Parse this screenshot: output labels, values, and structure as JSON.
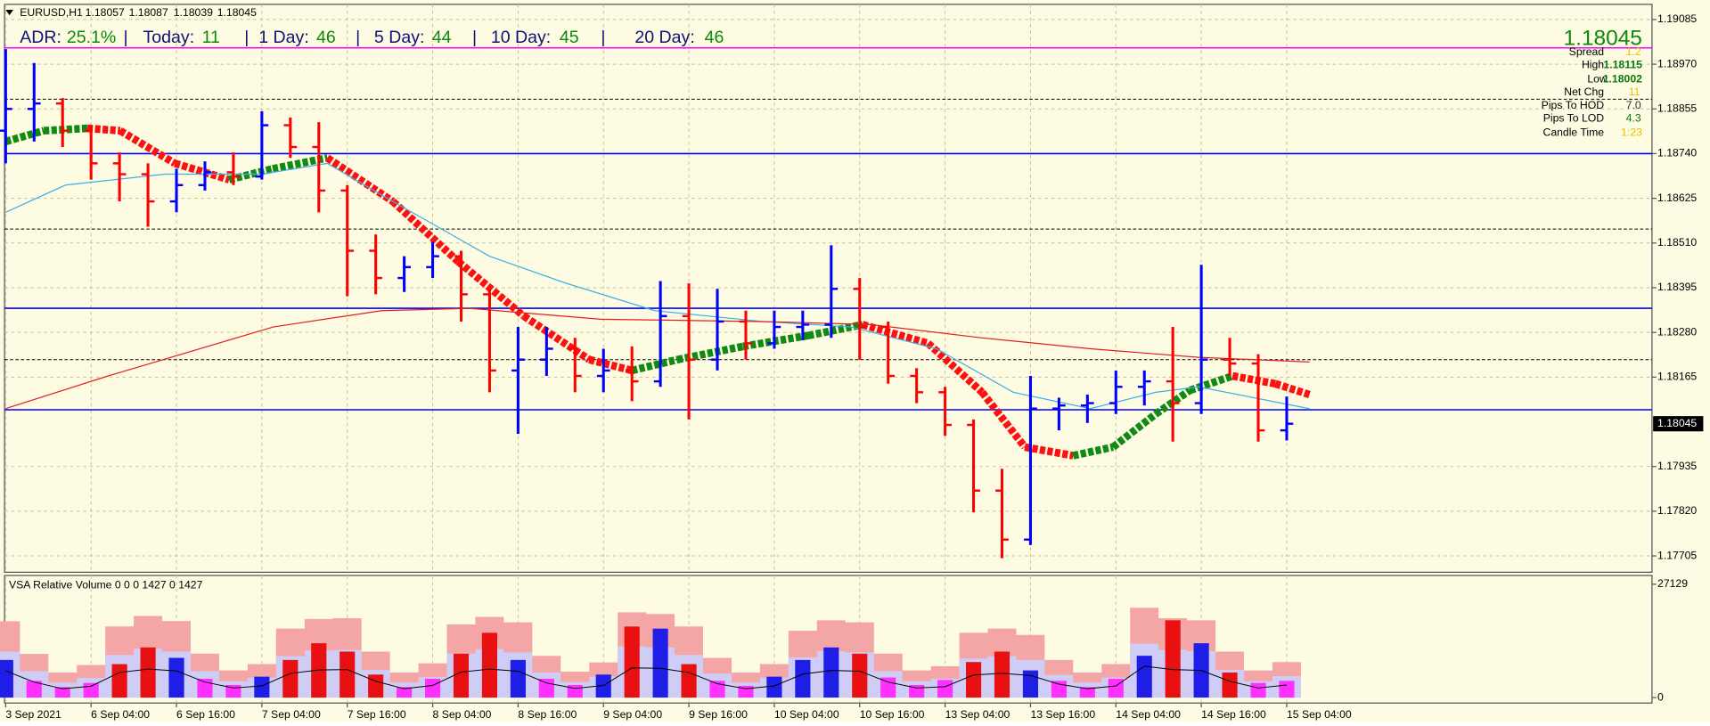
{
  "header": {
    "symbol": "EURUSD,H1",
    "quote": [
      1.18057,
      1.18087,
      1.18039,
      1.18045
    ]
  },
  "adr": {
    "label": "ADR:",
    "value": "25.1%",
    "items": [
      {
        "label": "Today:",
        "value": "11"
      },
      {
        "label": "1 Day:",
        "value": "46"
      },
      {
        "label": "5 Day:",
        "value": "44"
      },
      {
        "label": "10 Day:",
        "value": "45"
      },
      {
        "label": "20 Day:",
        "value": "46"
      }
    ]
  },
  "info_panel": {
    "price": "1.18045",
    "rows": [
      {
        "label": "Spread",
        "value": "1.2"
      },
      {
        "label": "High",
        "value": "1.18115"
      },
      {
        "label": "Low",
        "value": "1.18002"
      },
      {
        "label": "Net Chg",
        "value": "11"
      },
      {
        "label": "Pips To HOD",
        "value": "7.0"
      },
      {
        "label": "Pips To LOD",
        "value": "4.3"
      },
      {
        "label": "Candle Time",
        "value": "1:23"
      }
    ]
  },
  "chart_data": [
    {
      "type": "ohlc",
      "categories": [
        "3 Sep 2021",
        null,
        null,
        "6 Sep 04:00",
        null,
        null,
        "6 Sep 16:00",
        null,
        null,
        "7 Sep 04:00",
        null,
        null,
        "7 Sep 16:00",
        null,
        null,
        "8 Sep 04:00",
        null,
        null,
        "8 Sep 16:00",
        null,
        null,
        "9 Sep 04:00",
        null,
        null,
        "9 Sep 16:00",
        null,
        null,
        "10 Sep 04:00",
        null,
        null,
        "10 Sep 16:00",
        null,
        null,
        "13 Sep 04:00",
        null,
        null,
        "13 Sep 16:00",
        null,
        null,
        "14 Sep 04:00",
        null,
        null,
        "14 Sep 16:00",
        null,
        null,
        "15 Sep 04:00"
      ],
      "open": [
        1.18799,
        1.18855,
        1.18869,
        1.18799,
        1.18715,
        1.18687,
        1.18617,
        1.18659,
        1.18692,
        1.18681,
        1.18813,
        1.18757,
        1.18645,
        1.1849,
        1.1842,
        1.18448,
        1.18476,
        1.18378,
        1.18182,
        1.1821,
        1.18238,
        1.18168,
        1.18182,
        1.18154,
        1.18322,
        1.1821,
        1.18308,
        1.18252,
        1.18294,
        1.183,
        1.18392,
        1.18294,
        1.18168,
        1.18126,
        1.18042,
        1.17873,
        1.17747,
        1.18084,
        1.18092,
        1.18098,
        1.1814,
        1.18154,
        1.18098,
        1.1821,
        1.182,
        1.18028
      ],
      "high": [
        1.19009,
        1.18973,
        1.18883,
        1.18813,
        1.18743,
        1.18715,
        1.18701,
        1.1872,
        1.18743,
        1.18849,
        1.18833,
        1.18821,
        1.18659,
        1.18532,
        1.18476,
        1.18513,
        1.1849,
        1.18392,
        1.18294,
        1.18294,
        1.18266,
        1.18238,
        1.18244,
        1.18412,
        1.18406,
        1.18392,
        1.18336,
        1.18336,
        1.18336,
        1.18504,
        1.1842,
        1.18308,
        1.18188,
        1.1814,
        1.18056,
        1.17929,
        1.18168,
        1.18112,
        1.1812,
        1.18182,
        1.18182,
        1.18294,
        1.18454,
        1.18266,
        1.18224,
        1.18115
      ],
      "low": [
        1.18715,
        1.18771,
        1.18757,
        1.18673,
        1.18617,
        1.18552,
        1.18589,
        1.18645,
        1.18659,
        1.18673,
        1.18729,
        1.18589,
        1.18373,
        1.18378,
        1.18384,
        1.1842,
        1.18308,
        1.18126,
        1.18019,
        1.18168,
        1.18126,
        1.18126,
        1.18103,
        1.1814,
        1.18056,
        1.18182,
        1.1821,
        1.18238,
        1.1826,
        1.18266,
        1.1821,
        1.18148,
        1.18098,
        1.18014,
        1.17817,
        1.17699,
        1.17733,
        1.18028,
        1.18047,
        1.1807,
        1.18092,
        1.17999,
        1.1807,
        1.18168,
        1.17999,
        1.18002
      ],
      "close": [
        1.18855,
        1.18869,
        1.18799,
        1.18715,
        1.18687,
        1.18617,
        1.18659,
        1.18692,
        1.18681,
        1.18813,
        1.18757,
        1.18645,
        1.1849,
        1.1842,
        1.18448,
        1.18476,
        1.18378,
        1.18182,
        1.1821,
        1.18238,
        1.18168,
        1.18182,
        1.18154,
        1.18322,
        1.1821,
        1.18308,
        1.18252,
        1.18294,
        1.183,
        1.18392,
        1.18294,
        1.18168,
        1.18126,
        1.18042,
        1.17873,
        1.17747,
        1.18084,
        1.18092,
        1.18098,
        1.1814,
        1.18154,
        1.18098,
        1.1821,
        1.182,
        1.18028,
        1.18045
      ],
      "up_color": "#0000ff",
      "down_color": "#ff0000",
      "ylim": [
        1.17663,
        1.19124
      ],
      "yticks": [
        1.19085,
        {
          "value": 1.1897,
          "label": "1.18970"
        },
        1.18855,
        {
          "value": 1.1874,
          "label": "1.18740"
        },
        1.18625,
        {
          "value": 1.1851,
          "label": "1.18510"
        },
        1.18395,
        {
          "value": 1.1828,
          "label": "1.18280"
        },
        1.18165,
        1.17935,
        {
          "value": 1.1782,
          "label": "1.17820"
        },
        1.17705
      ],
      "grid": true,
      "last_price": 1.18045,
      "hlines": [
        {
          "value": 1.19012,
          "color": "#ff00ff",
          "dashed": false
        },
        {
          "value": 1.1888,
          "color": "#000000",
          "dashed": true
        },
        {
          "value": 1.1874,
          "color": "#0000ff",
          "dashed": false
        },
        {
          "value": 1.18546,
          "color": "#000000",
          "dashed": true
        },
        {
          "value": 1.18342,
          "color": "#0000ff",
          "dashed": false
        },
        {
          "value": 1.1821,
          "color": "#000000",
          "dashed": true
        },
        {
          "value": 1.18081,
          "color": "#0000ff",
          "dashed": false
        }
      ],
      "lines": [
        {
          "style": "diamond",
          "up_color": "#118a11",
          "down_color": "#ff1010",
          "x": [
            0,
            1.34,
            2.87,
            4.02,
            5.94,
            7.85,
            9.38,
            11.3,
            13.6,
            15.9,
            18.2,
            20.5,
            22.0,
            23.6,
            25.9,
            28.2,
            30.1,
            32.4,
            34.3,
            35.8,
            37.5,
            38.9,
            40.4,
            41.6,
            43.1,
            44.6,
            45.8
          ],
          "values": [
            1.18771,
            1.18799,
            1.18805,
            1.18799,
            1.18715,
            1.18673,
            1.18701,
            1.18729,
            1.18617,
            1.18462,
            1.18322,
            1.1821,
            1.18182,
            1.1821,
            1.18244,
            1.18272,
            1.183,
            1.18252,
            1.18126,
            1.17985,
            1.17963,
            1.17985,
            1.1807,
            1.18131,
            1.18168,
            1.18148,
            1.1812
          ]
        },
        {
          "style": "line",
          "color": "#3cb0e8",
          "x": [
            0,
            2.1,
            5.6,
            9,
            11.3,
            13.6,
            17.0,
            19.7,
            22.8,
            26.6,
            29.7,
            32.7,
            35.4,
            38.1,
            40.4,
            41.9,
            45.8
          ],
          "values": [
            1.18589,
            1.18659,
            1.18687,
            1.18687,
            1.18715,
            1.18617,
            1.18476,
            1.18406,
            1.18336,
            1.18308,
            1.18294,
            1.18238,
            1.18126,
            1.18084,
            1.18126,
            1.1814,
            1.18084
          ]
        },
        {
          "style": "line",
          "color": "#e02020",
          "x": [
            0,
            3.6,
            9.4,
            13.2,
            16.3,
            20.9,
            26.6,
            30.4,
            34.3,
            38.1,
            41.9,
            45.8
          ],
          "values": [
            1.18084,
            1.18168,
            1.18294,
            1.18336,
            1.18342,
            1.18314,
            1.18308,
            1.183,
            1.18266,
            1.18238,
            1.18216,
            1.18204
          ]
        }
      ]
    },
    {
      "type": "bar",
      "title": "VSA Relative Volume 0 0 0 1427 0 1427",
      "values": [
        9000,
        4000,
        2500,
        3500,
        8000,
        12000,
        9500,
        4500,
        3000,
        5000,
        9000,
        13000,
        11000,
        5500,
        2500,
        4500,
        10500,
        15500,
        9000,
        4500,
        3000,
        5500,
        17000,
        16500,
        8000,
        4000,
        2800,
        5000,
        9000,
        12000,
        10500,
        4800,
        3000,
        4200,
        8500,
        11000,
        6500,
        4000,
        2500,
        4500,
        10000,
        18500,
        13000,
        6000,
        3500,
        4000
      ],
      "colors": [
        "#1e1ee6",
        "#ff30ff",
        "#ff30ff",
        "#ff30ff",
        "#e81010",
        "#e81010",
        "#1e1ee6",
        "#ff30ff",
        "#ff30ff",
        "#1e1ee6",
        "#e81010",
        "#e81010",
        "#e81010",
        "#e81010",
        "#ff30ff",
        "#ff30ff",
        "#e81010",
        "#e81010",
        "#1e1ee6",
        "#ff30ff",
        "#ff30ff",
        "#1e1ee6",
        "#e81010",
        "#1e1ee6",
        "#e81010",
        "#ff30ff",
        "#ff30ff",
        "#1e1ee6",
        "#1e1ee6",
        "#1e1ee6",
        "#e81010",
        "#ff30ff",
        "#ff30ff",
        "#ff30ff",
        "#e81010",
        "#e81010",
        "#1e1ee6",
        "#ff30ff",
        "#ff30ff",
        "#ff30ff",
        "#1e1ee6",
        "#e81010",
        "#1e1ee6",
        "#e81010",
        "#ff30ff",
        "#ff30ff"
      ],
      "envelope": {
        "color": "#f4a6a6",
        "values": [
          18270,
          10440,
          6000,
          7800,
          17000,
          19500,
          18300,
          10500,
          6500,
          8000,
          16500,
          18800,
          19000,
          11000,
          6000,
          8200,
          17500,
          19300,
          18000,
          10000,
          6200,
          8400,
          20400,
          20000,
          17000,
          9500,
          6000,
          8000,
          16000,
          18500,
          18000,
          10500,
          6500,
          7500,
          15500,
          16500,
          15000,
          9000,
          6000,
          8000,
          21500,
          19000,
          18500,
          11000,
          6500,
          8500
        ]
      },
      "band": {
        "color": "#cfcdf6",
        "values": [
          11000,
          6300,
          3600,
          4700,
          10200,
          11700,
          11000,
          6300,
          3900,
          4800,
          9900,
          11300,
          11400,
          6600,
          3600,
          4900,
          10500,
          11600,
          10800,
          6000,
          3700,
          5000,
          12200,
          12000,
          10200,
          5700,
          3600,
          4800,
          9600,
          11100,
          10800,
          6300,
          3900,
          4500,
          9300,
          9900,
          9000,
          5400,
          3600,
          4800,
          12900,
          11400,
          11100,
          6600,
          3900,
          5100
        ]
      },
      "average": {
        "color": "#000000",
        "values": [
          6400,
          3700,
          2100,
          2700,
          6000,
          6800,
          6400,
          3700,
          2300,
          2800,
          5800,
          6600,
          6700,
          3900,
          2100,
          2900,
          6100,
          6800,
          6300,
          3500,
          2200,
          2900,
          7100,
          7000,
          6000,
          3300,
          2100,
          2800,
          5600,
          6500,
          6300,
          3700,
          2300,
          2600,
          5400,
          5800,
          5300,
          3200,
          2100,
          2800,
          7500,
          6700,
          6500,
          3900,
          2300,
          3000
        ]
      },
      "ylim": [
        0,
        27129
      ],
      "yticks": [
        27129,
        0
      ]
    }
  ]
}
